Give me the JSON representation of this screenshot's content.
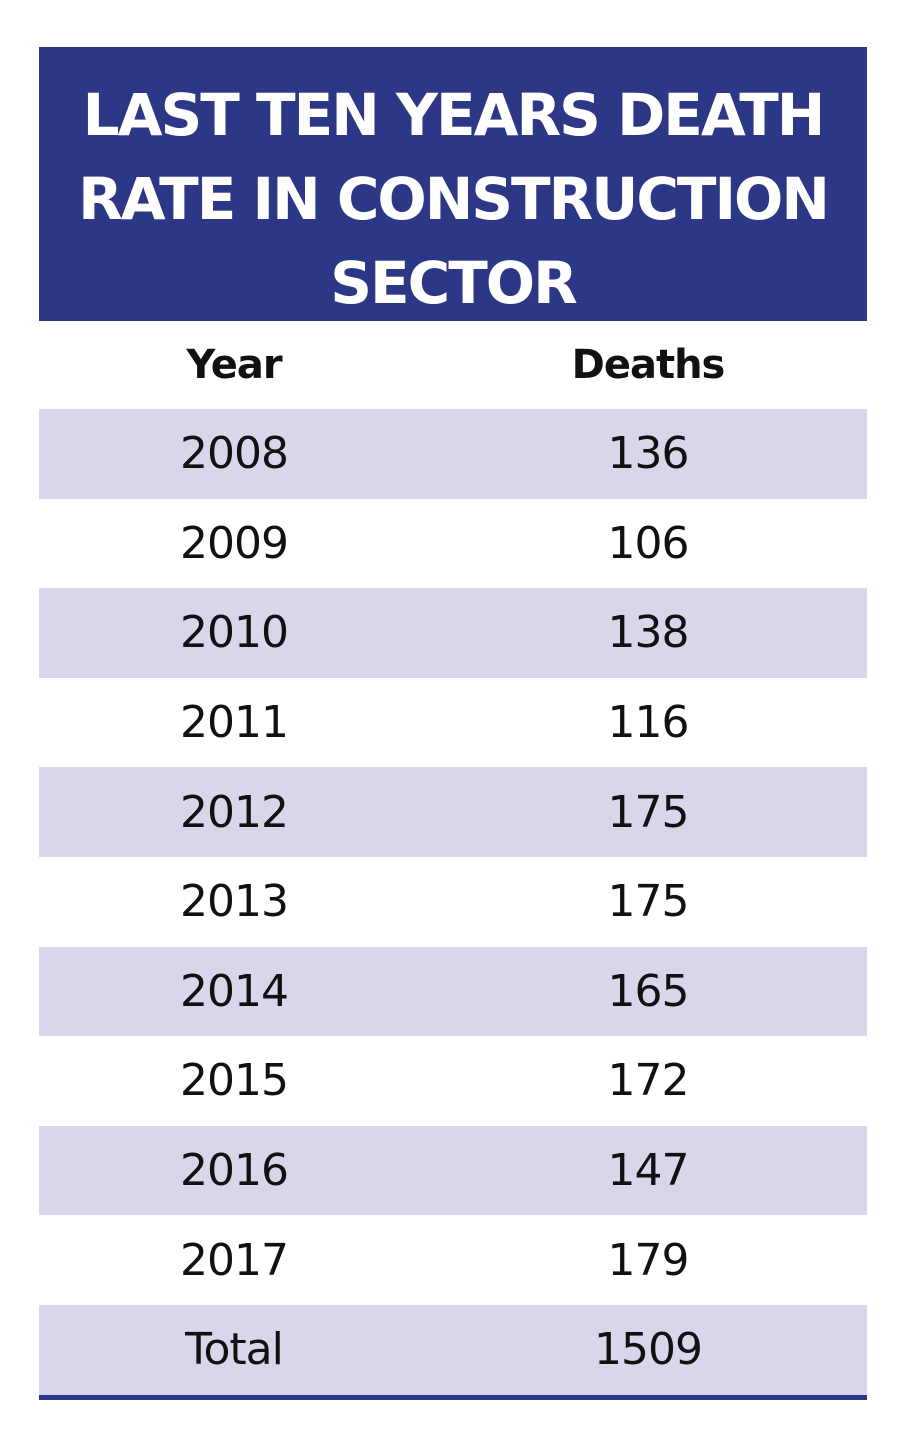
{
  "title": {
    "lines": [
      "LAST TEN YEARS DEATH",
      "RATE IN CONSTRUCTION",
      "SECTOR"
    ]
  },
  "colors": {
    "header_bg": "#2c3786",
    "row_shade": "#d8d6ea",
    "text": "#111111"
  },
  "chart_data": {
    "type": "table",
    "title": "LAST TEN YEARS DEATH RATE IN CONSTRUCTION SECTOR",
    "columns": [
      "Year",
      "Deaths"
    ],
    "rows": [
      [
        "2008",
        "136"
      ],
      [
        "2009",
        "106"
      ],
      [
        "2010",
        "138"
      ],
      [
        "2011",
        "116"
      ],
      [
        "2012",
        "175"
      ],
      [
        "2013",
        "175"
      ],
      [
        "2014",
        "165"
      ],
      [
        "2015",
        "172"
      ],
      [
        "2016",
        "147"
      ],
      [
        "2017",
        "179"
      ],
      [
        "Total",
        "1509"
      ]
    ]
  }
}
